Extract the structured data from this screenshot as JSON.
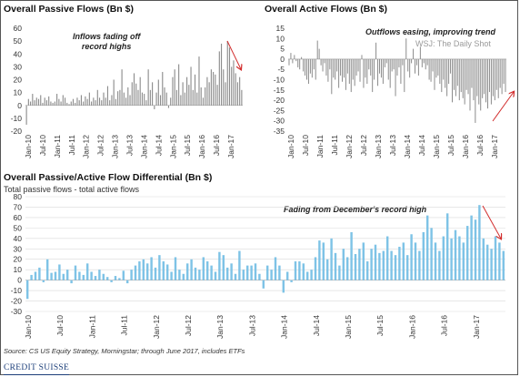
{
  "charts": [
    {
      "id": "passive",
      "title": "Overall Passive Flows (Bn $)",
      "annotation": "Inflows fading off\nrecord highs"
    },
    {
      "id": "active",
      "title": "Overall Active Flows (Bn $)",
      "annotation": "Outflows easing, improving trend",
      "watermark": "WSJ: The Daily Shot"
    },
    {
      "id": "diff",
      "title": "Overall Passive/Active Flow Differential (Bn $)",
      "subtitle": "Total passive flows - total active flows",
      "annotation": "Fading from December's record high"
    }
  ],
  "source": "Source: CS US Equity Strategy, Morningstar; through June 2017, includes ETFs",
  "logo": "CREDIT SUISSE",
  "colors": {
    "gray_bar": "#8c8c8c",
    "blue_bar": "#7ec3e6",
    "arrow": "#d22d2d",
    "grid": "#d9d9d9"
  },
  "chart_data": [
    {
      "type": "bar",
      "name": "passive",
      "x_tick_labels": [
        "Jan-10",
        "Jul-10",
        "Jan-11",
        "Jul-11",
        "Jan-12",
        "Jul-12",
        "Jan-13",
        "Jul-13",
        "Jan-14",
        "Jul-14",
        "Jan-15",
        "Jul-15",
        "Jan-16",
        "Jul-16",
        "Jan-17"
      ],
      "ylim": [
        -20,
        60
      ],
      "yticks": [
        -20,
        -10,
        0,
        10,
        20,
        30,
        40,
        50,
        60
      ],
      "values": [
        -15,
        5,
        3,
        9,
        4,
        6,
        5,
        8,
        2,
        6,
        4,
        7,
        3,
        2,
        3,
        9,
        5,
        3,
        8,
        6,
        2,
        1,
        3,
        5,
        2,
        6,
        4,
        8,
        3,
        7,
        5,
        10,
        3,
        6,
        4,
        12,
        6,
        4,
        10,
        6,
        15,
        4,
        8,
        20,
        5,
        11,
        12,
        28,
        10,
        6,
        14,
        8,
        18,
        25,
        17,
        12,
        22,
        10,
        9,
        4,
        28,
        12,
        18,
        -3,
        10,
        20,
        8,
        26,
        14,
        10,
        -2,
        6,
        22,
        28,
        12,
        32,
        8,
        18,
        10,
        22,
        16,
        30,
        12,
        24,
        10,
        38,
        14,
        6,
        14,
        22,
        18,
        28,
        26,
        24,
        16,
        42,
        48,
        28,
        18,
        50,
        45,
        30,
        35,
        25,
        18,
        22,
        12
      ]
    },
    {
      "type": "bar",
      "name": "active",
      "x_tick_labels": [
        "Jan-10",
        "Jul-10",
        "Jan-11",
        "Jul-11",
        "Jan-12",
        "Jul-12",
        "Jan-13",
        "Jul-13",
        "Jan-14",
        "Jul-14",
        "Jan-15",
        "Jul-15",
        "Jan-16",
        "Jul-16",
        "Jan-17"
      ],
      "ylim": [
        -35,
        15
      ],
      "yticks": [
        -35,
        -30,
        -25,
        -20,
        -15,
        -10,
        -5,
        0,
        5,
        10,
        15
      ],
      "values": [
        -3,
        3,
        -2,
        2,
        -1,
        -4,
        -5,
        1,
        -6,
        -8,
        -10,
        -12,
        -7,
        -9,
        -5,
        -10,
        9,
        5,
        -3,
        -6,
        -2,
        -8,
        -11,
        -5,
        -17,
        -9,
        -10,
        -6,
        -14,
        -8,
        -11,
        -9,
        -15,
        -7,
        -12,
        -16,
        -10,
        -13,
        -8,
        -6,
        -11,
        2,
        -14,
        -9,
        -12,
        -5,
        -8,
        -16,
        -10,
        8,
        -13,
        -7,
        -9,
        -12,
        -4,
        -2,
        -10,
        -14,
        -6,
        -5,
        -18,
        -8,
        -4,
        -12,
        -3,
        -16,
        10,
        -6,
        -9,
        -2,
        5,
        -7,
        -3,
        -8,
        6,
        -4,
        -2,
        -5,
        -3,
        -10,
        -11,
        -6,
        -15,
        -9,
        -8,
        -12,
        -16,
        -10,
        -14,
        -18,
        -12,
        -7,
        -21,
        -15,
        -18,
        -13,
        -20,
        -16,
        -19,
        -22,
        -15,
        -17,
        -25,
        -14,
        -20,
        -31,
        -18,
        -22,
        -25,
        -19,
        -17,
        -21,
        -24,
        -16,
        -22,
        -18,
        -20,
        -15,
        -19,
        -14,
        -17,
        -12,
        -16
      ]
    },
    {
      "type": "bar",
      "name": "diff",
      "x_tick_labels": [
        "Jan-10",
        "Jul-10",
        "Jan-11",
        "Jul-11",
        "Jan-12",
        "Jul-12",
        "Jan-13",
        "Jul-13",
        "Jan-14",
        "Jul-14",
        "Jan-15",
        "Jul-15",
        "Jan-16",
        "Jul-16",
        "Jan-17"
      ],
      "ylim": [
        -30,
        80
      ],
      "yticks": [
        -30,
        -20,
        -10,
        0,
        10,
        20,
        30,
        40,
        50,
        60,
        70,
        80
      ],
      "values": [
        -18,
        5,
        8,
        12,
        -2,
        20,
        7,
        8,
        15,
        6,
        10,
        -3,
        14,
        8,
        5,
        16,
        8,
        4,
        10,
        6,
        3,
        -2,
        4,
        2,
        9,
        -3,
        10,
        14,
        18,
        20,
        16,
        22,
        12,
        24,
        18,
        15,
        8,
        22,
        10,
        6,
        16,
        20,
        12,
        10,
        22,
        18,
        14,
        8,
        27,
        24,
        12,
        16,
        6,
        28,
        10,
        14,
        14,
        16,
        6,
        -8,
        14,
        10,
        22,
        14,
        -12,
        8,
        -2,
        18,
        18,
        16,
        8,
        10,
        22,
        38,
        36,
        20,
        40,
        26,
        14,
        30,
        22,
        46,
        25,
        30,
        36,
        18,
        30,
        34,
        26,
        28,
        42,
        28,
        24,
        32,
        36,
        24,
        44,
        36,
        28,
        46,
        62,
        50,
        36,
        28,
        42,
        64,
        40,
        48,
        42,
        36,
        52,
        62,
        58,
        72,
        40,
        34,
        30,
        42,
        36,
        28
      ]
    }
  ]
}
